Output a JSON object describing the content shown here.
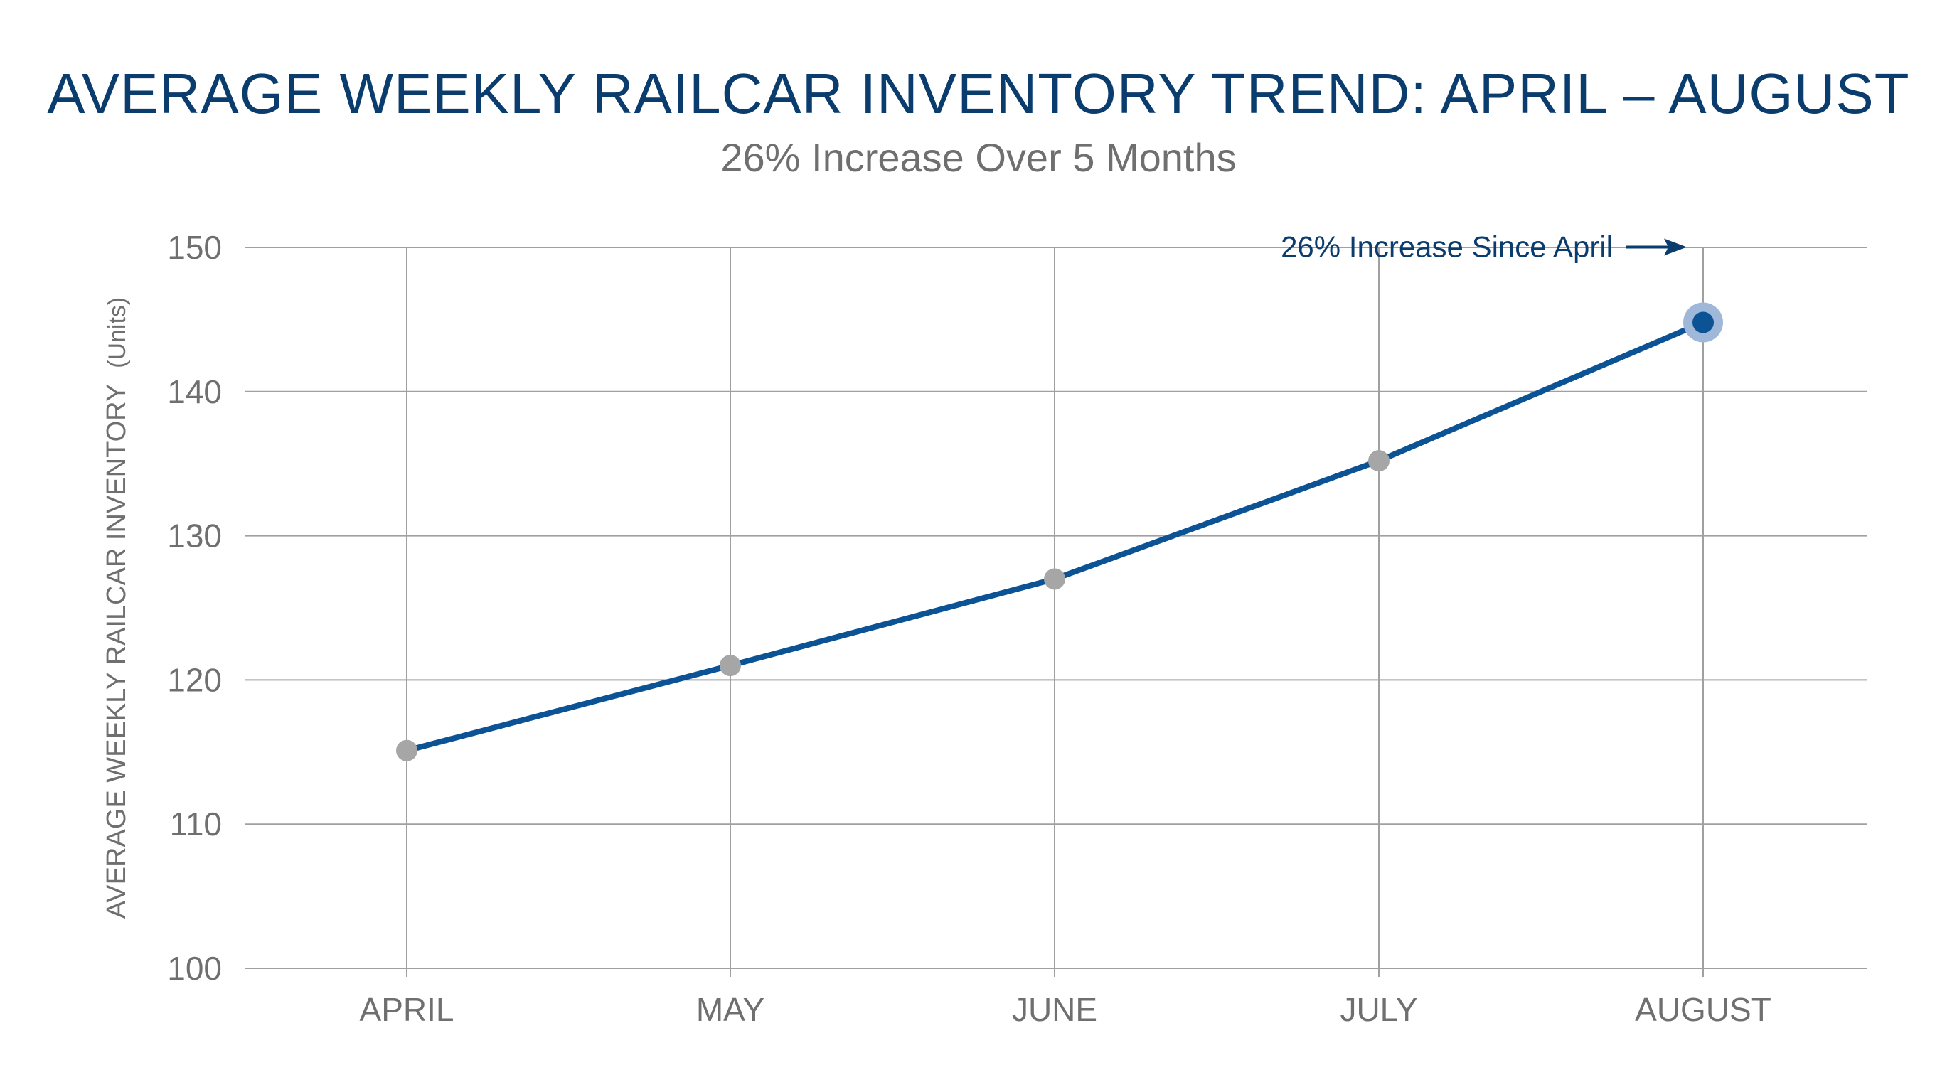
{
  "chart_data": {
    "type": "line",
    "title": "AVERAGE WEEKLY RAILCAR INVENTORY TREND: APRIL – AUGUST",
    "subtitle": "26% Increase Over 5 Months",
    "xlabel": "",
    "ylabel": "AVERAGE WEEKLY RAILCAR INVENTORY",
    "ylabel_unit": "(Units)",
    "categories": [
      "APRIL",
      "MAY",
      "JUNE",
      "JULY",
      "AUGUST"
    ],
    "series": [
      {
        "values": [
          115.1,
          121.0,
          127.0,
          135.2,
          144.8
        ]
      }
    ],
    "ylim": [
      100,
      150
    ],
    "yticks": [
      100,
      110,
      120,
      130,
      140,
      150
    ],
    "grid": true,
    "annotation": {
      "text": "26% Increase Since April",
      "target_category": "AUGUST"
    },
    "colors": {
      "line": "#0b5394",
      "marker": "#a6a6a6",
      "highlight_marker": "#0b5394",
      "highlight_halo": "#9fb8d9",
      "grid": "#a0a0a0",
      "axis_text": "#6f6f6f",
      "title": "#0b3c6e",
      "annotation": "#0b3c6e"
    }
  }
}
